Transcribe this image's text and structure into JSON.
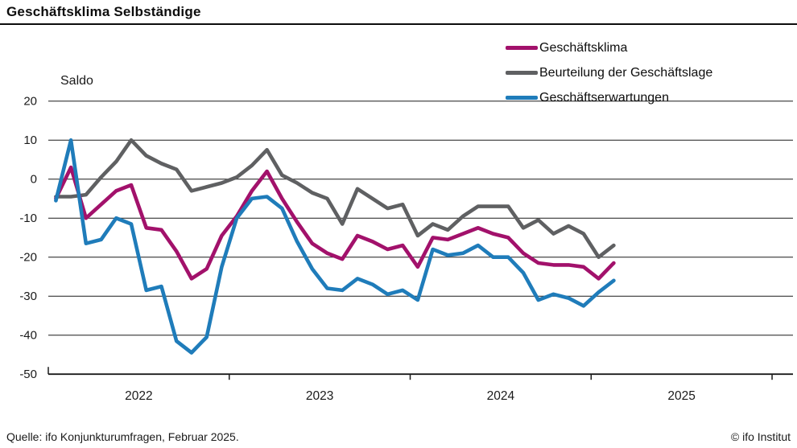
{
  "chart_data": {
    "type": "line",
    "title": "Geschäftsklima Selbständige",
    "ylabel": "Saldo",
    "ylim": [
      -50,
      20
    ],
    "grid": "horizontal",
    "legend_position": "top-right",
    "yticks": [
      20,
      10,
      0,
      -10,
      -20,
      -30,
      -40,
      -50
    ],
    "xticks": [
      "2022",
      "2023",
      "2024",
      "2025"
    ],
    "months": [
      "2022-01",
      "2022-02",
      "2022-03",
      "2022-04",
      "2022-05",
      "2022-06",
      "2022-07",
      "2022-08",
      "2022-09",
      "2022-10",
      "2022-11",
      "2022-12",
      "2023-01",
      "2023-02",
      "2023-03",
      "2023-04",
      "2023-05",
      "2023-06",
      "2023-07",
      "2023-08",
      "2023-09",
      "2023-10",
      "2023-11",
      "2023-12",
      "2024-01",
      "2024-02",
      "2024-03",
      "2024-04",
      "2024-05",
      "2024-06",
      "2024-07",
      "2024-08",
      "2024-09",
      "2024-10",
      "2024-11",
      "2024-12",
      "2025-01",
      "2025-02"
    ],
    "series": [
      {
        "name": "Geschäftsklima",
        "color": "#a2116b",
        "values": [
          -5,
          3,
          -10,
          -6.5,
          -3,
          -1.5,
          -12.5,
          -13,
          -18.5,
          -25.5,
          -23,
          -14.5,
          -9.5,
          -3,
          2,
          -5,
          -11,
          -16.5,
          -19,
          -20.5,
          -14.5,
          -16,
          -18,
          -17,
          -22.5,
          -15,
          -15.5,
          -14,
          -12.5,
          -14,
          -15,
          -19,
          -21.5,
          -22,
          -22,
          -22.5,
          -25.5,
          -21.5
        ]
      },
      {
        "name": "Beurteilung der Geschäftslage",
        "color": "#5f6062",
        "values": [
          -4.5,
          -4.5,
          -4,
          0.5,
          4.5,
          10,
          6,
          4,
          2.5,
          -3,
          -2,
          -1,
          0.5,
          3.5,
          7.5,
          1,
          -1,
          -3.5,
          -5,
          -11.5,
          -2.5,
          -5,
          -7.5,
          -6.5,
          -14.5,
          -11.5,
          -13,
          -9.5,
          -7,
          -7,
          -7,
          -12.5,
          -10.5,
          -14,
          -12,
          -14,
          -20,
          -17
        ]
      },
      {
        "name": "Geschäftserwartungen",
        "color": "#1f7cba",
        "values": [
          -5.5,
          10,
          -16.5,
          -15.5,
          -10,
          -11.5,
          -28.5,
          -27.5,
          -41.5,
          -44.5,
          -40.5,
          -22.5,
          -10,
          -5,
          -4.5,
          -7.5,
          -16,
          -23,
          -28,
          -28.5,
          -25.5,
          -27,
          -29.5,
          -28.5,
          -31,
          -18,
          -19.5,
          -19,
          -17,
          -20,
          -20,
          -24,
          -31,
          -29.5,
          -30.5,
          -32.5,
          -29,
          -26
        ]
      }
    ]
  },
  "footer": {
    "source": "Quelle: ifo Konjunkturumfragen, Februar 2025.",
    "copyright": "© ifo Institut"
  }
}
